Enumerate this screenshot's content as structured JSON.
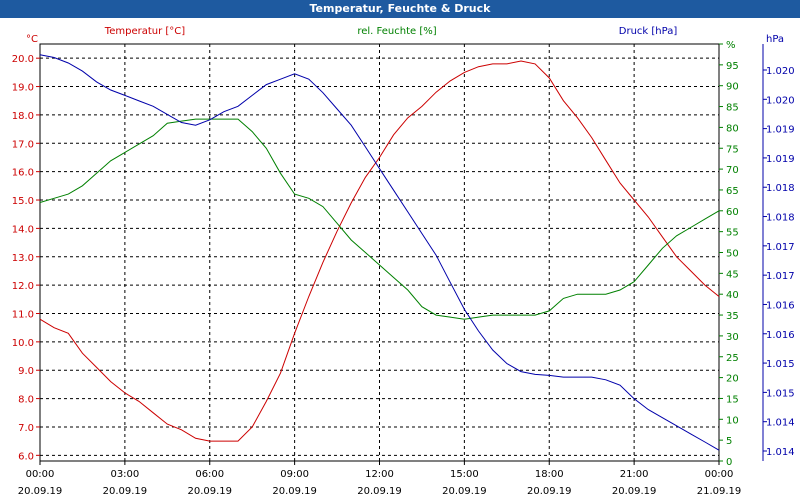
{
  "window": {
    "title": "Temperatur, Feuchte & Druck"
  },
  "chart_data": {
    "type": "line",
    "title": "Temperatur, Feuchte & Druck",
    "x": {
      "range_hours": [
        0,
        24
      ],
      "tick_hours": [
        0,
        3,
        6,
        9,
        12,
        15,
        18,
        21,
        24
      ],
      "tick_times": [
        "00:00",
        "03:00",
        "06:00",
        "09:00",
        "12:00",
        "15:00",
        "18:00",
        "21:00",
        "00:00"
      ],
      "tick_dates": [
        "20.09.19",
        "20.09.19",
        "20.09.19",
        "20.09.19",
        "20.09.19",
        "20.09.19",
        "20.09.19",
        "20.09.19",
        "21.09.19"
      ]
    },
    "axes": {
      "temperature": {
        "unit": "°C",
        "range": [
          5.8,
          20.5
        ],
        "ticks": [
          6.0,
          7.0,
          8.0,
          9.0,
          10.0,
          11.0,
          12.0,
          13.0,
          14.0,
          15.0,
          16.0,
          17.0,
          18.0,
          19.0,
          20.0
        ],
        "tick_labels": [
          "6.0",
          "7.0",
          "8.0",
          "9.0",
          "10.0",
          "11.0",
          "12.0",
          "13.0",
          "14.0",
          "15.0",
          "16.0",
          "17.0",
          "18.0",
          "19.0",
          "20.0"
        ]
      },
      "humidity": {
        "unit": "%",
        "range": [
          0,
          100
        ],
        "ticks": [
          0,
          5,
          10,
          15,
          20,
          25,
          30,
          35,
          40,
          45,
          50,
          55,
          60,
          65,
          70,
          75,
          80,
          85,
          90,
          95,
          100
        ],
        "tick_labels": [
          "0",
          "5",
          "10",
          "15",
          "20",
          "25",
          "30",
          "35",
          "40",
          "45",
          "50",
          "55",
          "60",
          "65",
          "70",
          "75",
          "80",
          "85",
          "90",
          "95",
          "%"
        ]
      },
      "pressure": {
        "unit": "hPa",
        "range": [
          1013.5,
          1021.2
        ],
        "tick_labels": [
          "1.014",
          "1.014",
          "1.015",
          "1.015",
          "1.016",
          "1.016",
          "1.017",
          "1.017",
          "1.018",
          "1.018",
          "1.019",
          "1.019",
          "1.020",
          "1.020"
        ],
        "top_label": "hPa"
      }
    },
    "series": [
      {
        "name": "Temperatur [°C]",
        "axis": "temperature",
        "color": "#cc0000",
        "points": [
          [
            0,
            10.8
          ],
          [
            0.5,
            10.5
          ],
          [
            1,
            10.3
          ],
          [
            1.5,
            9.6
          ],
          [
            2,
            9.1
          ],
          [
            2.5,
            8.6
          ],
          [
            3,
            8.2
          ],
          [
            3.5,
            7.9
          ],
          [
            4,
            7.5
          ],
          [
            4.5,
            7.1
          ],
          [
            5,
            6.9
          ],
          [
            5.5,
            6.6
          ],
          [
            6,
            6.5
          ],
          [
            6.5,
            6.5
          ],
          [
            7,
            6.5
          ],
          [
            7.5,
            7.0
          ],
          [
            8,
            7.9
          ],
          [
            8.5,
            8.9
          ],
          [
            9,
            10.3
          ],
          [
            9.5,
            11.6
          ],
          [
            10,
            12.8
          ],
          [
            10.5,
            13.9
          ],
          [
            11,
            14.9
          ],
          [
            11.5,
            15.8
          ],
          [
            12,
            16.5
          ],
          [
            12.5,
            17.3
          ],
          [
            13,
            17.9
          ],
          [
            13.5,
            18.3
          ],
          [
            14,
            18.8
          ],
          [
            14.5,
            19.2
          ],
          [
            15,
            19.5
          ],
          [
            15.5,
            19.7
          ],
          [
            16,
            19.8
          ],
          [
            16.5,
            19.8
          ],
          [
            17,
            19.9
          ],
          [
            17.5,
            19.8
          ],
          [
            18,
            19.3
          ],
          [
            18.5,
            18.5
          ],
          [
            19,
            17.9
          ],
          [
            19.5,
            17.2
          ],
          [
            20,
            16.4
          ],
          [
            20.5,
            15.6
          ],
          [
            21,
            15.0
          ],
          [
            21.5,
            14.4
          ],
          [
            22,
            13.7
          ],
          [
            22.5,
            13.0
          ],
          [
            23,
            12.5
          ],
          [
            23.5,
            12.0
          ],
          [
            24,
            11.6
          ]
        ]
      },
      {
        "name": "rel. Feuchte [%]",
        "axis": "humidity",
        "color": "#008000",
        "points": [
          [
            0,
            62
          ],
          [
            0.5,
            63
          ],
          [
            1,
            64
          ],
          [
            1.5,
            66
          ],
          [
            2,
            69
          ],
          [
            2.5,
            72
          ],
          [
            3,
            74
          ],
          [
            3.5,
            76
          ],
          [
            4,
            78
          ],
          [
            4.5,
            81
          ],
          [
            5,
            81.5
          ],
          [
            5.5,
            82
          ],
          [
            6,
            82
          ],
          [
            6.5,
            82
          ],
          [
            7,
            82
          ],
          [
            7.5,
            79
          ],
          [
            8,
            75
          ],
          [
            8.5,
            69
          ],
          [
            9,
            64
          ],
          [
            9.5,
            63
          ],
          [
            10,
            61
          ],
          [
            10.5,
            57
          ],
          [
            11,
            53
          ],
          [
            11.5,
            50
          ],
          [
            12,
            47
          ],
          [
            12.5,
            44
          ],
          [
            13,
            41
          ],
          [
            13.5,
            37
          ],
          [
            14,
            35
          ],
          [
            14.5,
            34.5
          ],
          [
            15,
            34
          ],
          [
            15.5,
            34.5
          ],
          [
            16,
            35
          ],
          [
            16.5,
            35
          ],
          [
            17,
            35
          ],
          [
            17.5,
            35
          ],
          [
            18,
            36
          ],
          [
            18.5,
            39
          ],
          [
            19,
            40
          ],
          [
            19.5,
            40
          ],
          [
            20,
            40
          ],
          [
            20.5,
            41
          ],
          [
            21,
            43
          ],
          [
            21.5,
            47
          ],
          [
            22,
            51
          ],
          [
            22.5,
            54
          ],
          [
            23,
            56
          ],
          [
            23.5,
            58
          ],
          [
            24,
            60
          ]
        ]
      },
      {
        "name": "Druck [hPa]",
        "axis": "pressure",
        "color": "#0000aa",
        "points": [
          [
            0,
            1021.0
          ],
          [
            0.5,
            1020.95
          ],
          [
            1,
            1020.85
          ],
          [
            1.5,
            1020.7
          ],
          [
            2,
            1020.5
          ],
          [
            2.5,
            1020.35
          ],
          [
            3,
            1020.25
          ],
          [
            3.5,
            1020.15
          ],
          [
            4,
            1020.05
          ],
          [
            4.5,
            1019.9
          ],
          [
            5,
            1019.75
          ],
          [
            5.5,
            1019.7
          ],
          [
            6,
            1019.8
          ],
          [
            6.5,
            1019.95
          ],
          [
            7,
            1020.05
          ],
          [
            7.5,
            1020.25
          ],
          [
            8,
            1020.45
          ],
          [
            8.5,
            1020.55
          ],
          [
            9,
            1020.65
          ],
          [
            9.5,
            1020.55
          ],
          [
            10,
            1020.3
          ],
          [
            10.5,
            1020.0
          ],
          [
            11,
            1019.7
          ],
          [
            11.5,
            1019.3
          ],
          [
            12,
            1018.9
          ],
          [
            12.5,
            1018.5
          ],
          [
            13,
            1018.1
          ],
          [
            13.5,
            1017.7
          ],
          [
            14,
            1017.3
          ],
          [
            14.5,
            1016.8
          ],
          [
            15,
            1016.3
          ],
          [
            15.5,
            1015.9
          ],
          [
            16,
            1015.55
          ],
          [
            16.5,
            1015.3
          ],
          [
            17,
            1015.15
          ],
          [
            17.5,
            1015.1
          ],
          [
            18,
            1015.08
          ],
          [
            18.5,
            1015.05
          ],
          [
            19,
            1015.05
          ],
          [
            19.5,
            1015.05
          ],
          [
            20,
            1015.0
          ],
          [
            20.5,
            1014.9
          ],
          [
            21,
            1014.65
          ],
          [
            21.5,
            1014.45
          ],
          [
            22,
            1014.3
          ],
          [
            22.5,
            1014.15
          ],
          [
            23,
            1014.0
          ],
          [
            23.5,
            1013.85
          ],
          [
            24,
            1013.7
          ]
        ]
      }
    ],
    "legend": [
      "Temperatur [°C]",
      "rel. Feuchte [%]",
      "Druck [hPa]"
    ],
    "grid": true
  }
}
